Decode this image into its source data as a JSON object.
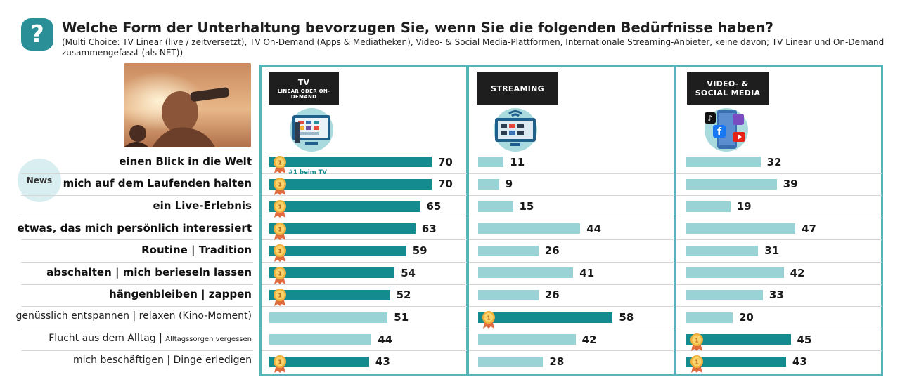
{
  "header": {
    "icon": "question-icon",
    "title": "Welche Form der Unterhaltung bevorzugen Sie, wenn Sie die folgenden Bedürfnisse haben?",
    "subtitle": "(Multi Choice: TV Linear (live / zeitversetzt), TV On-Demand (Apps & Mediatheken), Video- & Social Media-Plattformen, Internationale Streaming-Anbieter, keine davon; TV Linear und On-Demand zusammengefasst (als NET))"
  },
  "side_badge": "News",
  "columns": [
    {
      "title": "TV",
      "subtitle": "LINEAR ODER ON-DEMAND",
      "icon": "tv-icon"
    },
    {
      "title": "STREAMING",
      "subtitle": "",
      "icon": "streaming-tv-icon"
    },
    {
      "title": "VIDEO- &",
      "title2": "SOCIAL MEDIA",
      "icon": "social-media-icon"
    }
  ],
  "annotation": "#1 beim TV",
  "colors": {
    "dark_bar": "#138b8f",
    "light_bar": "#99d3d6",
    "panel_border": "#58b4b8",
    "medal": "#e8a23a"
  },
  "chart_data": {
    "type": "bar",
    "categories": [
      {
        "label": "einen Blick in die Welt",
        "small": "",
        "bold": true
      },
      {
        "label": "mich auf dem Laufenden halten",
        "small": "",
        "bold": true
      },
      {
        "label": "ein Live-Erlebnis",
        "small": "",
        "bold": true
      },
      {
        "label": "etwas, das mich persönlich interessiert",
        "small": "",
        "bold": true
      },
      {
        "label": "Routine | Tradition",
        "small": "",
        "bold": true
      },
      {
        "label": "abschalten | mich berieseln lassen",
        "small": "",
        "bold": true
      },
      {
        "label": "hängenbleiben | zappen",
        "small": "",
        "bold": true
      },
      {
        "label": "genüsslich entspannen | relaxen (Kino-Moment)",
        "small": "",
        "bold": false
      },
      {
        "label": "Flucht aus dem Alltag | ",
        "small": "Alltagssorgen vergessen",
        "bold": false
      },
      {
        "label": "mich beschäftigen | Dinge erledigen",
        "small": "",
        "bold": false
      }
    ],
    "series": [
      {
        "values": [
          70,
          70,
          65,
          63,
          59,
          54,
          52,
          51,
          44,
          43
        ],
        "top": [
          true,
          true,
          true,
          true,
          true,
          true,
          true,
          false,
          false,
          true
        ]
      },
      {
        "values": [
          11,
          9,
          15,
          44,
          26,
          41,
          26,
          58,
          42,
          28
        ],
        "top": [
          false,
          false,
          false,
          false,
          false,
          false,
          false,
          true,
          false,
          false
        ]
      },
      {
        "values": [
          32,
          39,
          19,
          47,
          31,
          42,
          33,
          20,
          45,
          43
        ],
        "top": [
          false,
          false,
          false,
          false,
          false,
          false,
          false,
          false,
          true,
          true
        ]
      }
    ]
  }
}
